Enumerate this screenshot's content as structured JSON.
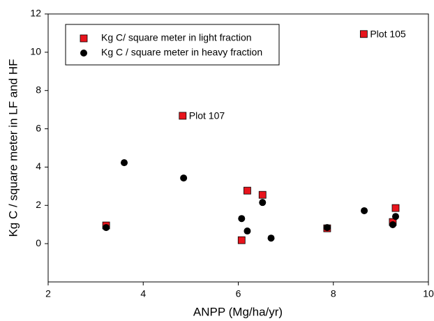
{
  "chart_data": {
    "type": "scatter",
    "x_label": "ANPP (Mg/ha/yr)",
    "y_label": "Kg C / square meter in LF and HF",
    "xlim": [
      2,
      10
    ],
    "ylim": [
      -2,
      12
    ],
    "xticks": [
      2,
      4,
      6,
      8,
      10
    ],
    "yticks": [
      0,
      2,
      4,
      6,
      8,
      10,
      12
    ],
    "legend": "upper left",
    "series": [
      {
        "name": "Kg C/ square meter in light fraction",
        "color": "#e8141c",
        "marker": "square",
        "x": [
          3.22,
          4.83,
          8.64,
          6.19,
          6.51,
          6.07,
          7.87,
          9.31,
          9.25
        ],
        "values": [
          0.95,
          6.68,
          10.95,
          2.77,
          2.55,
          0.18,
          0.8,
          1.86,
          1.13
        ],
        "point_labels": [
          null,
          "Plot 107",
          "Plot 105",
          null,
          null,
          null,
          null,
          null,
          null
        ]
      },
      {
        "name": "Kg C / square meter in heavy fraction",
        "color": "#000000",
        "marker": "circle",
        "x": [
          3.22,
          3.6,
          4.85,
          6.07,
          6.19,
          6.51,
          6.69,
          7.87,
          8.65,
          9.25,
          9.31
        ],
        "values": [
          0.84,
          4.23,
          3.43,
          1.31,
          0.66,
          2.15,
          0.29,
          0.84,
          1.72,
          0.99,
          1.42
        ]
      }
    ]
  }
}
